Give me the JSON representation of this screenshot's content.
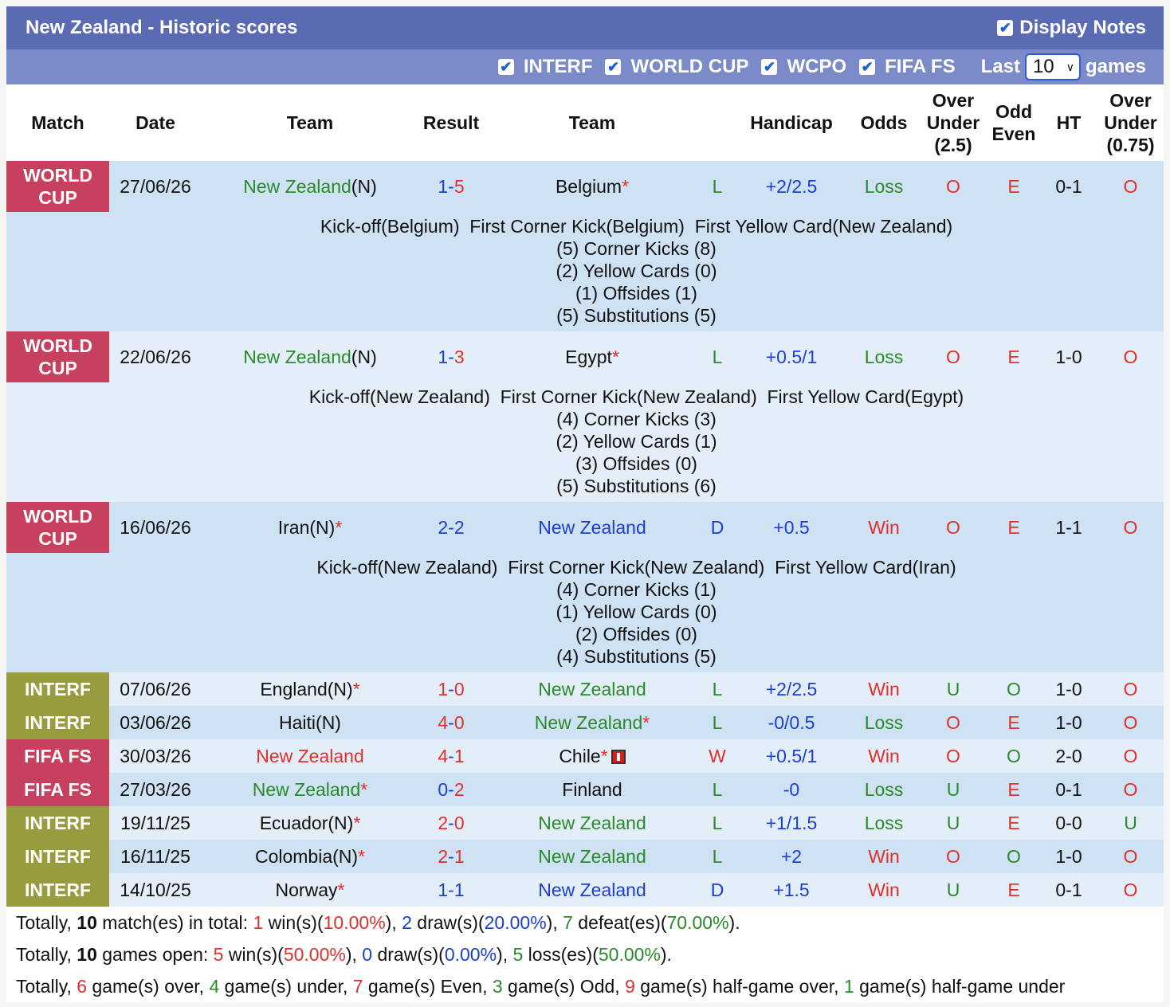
{
  "header": {
    "title": "New Zealand - Historic scores",
    "display_notes": "Display Notes",
    "display_notes_checked": true
  },
  "filters": {
    "items": [
      {
        "label": "INTERF",
        "checked": true
      },
      {
        "label": "WORLD CUP",
        "checked": true
      },
      {
        "label": "WCPO",
        "checked": true
      },
      {
        "label": "FIFA FS",
        "checked": true
      }
    ],
    "last_label": "Last",
    "last_value": "10",
    "games_label": "games"
  },
  "columns": {
    "match": "Match",
    "date": "Date",
    "team1": "Team",
    "result": "Result",
    "team2": "Team",
    "wl": "",
    "handicap": "Handicap",
    "odds": "Odds",
    "ou25_1": "Over",
    "ou25_2": "Under",
    "ou25_3": "(2.5)",
    "oe_1": "Odd",
    "oe_2": "Even",
    "ht": "HT",
    "ou075_1": "Over",
    "ou075_2": "Under",
    "ou075_3": "(0.75)"
  },
  "matches": [
    {
      "label1": "WORLD",
      "label2": "CUP",
      "comp": "wc",
      "date": "27/06/26",
      "home": "New Zealand",
      "home_suffix": "(N)",
      "home_star": "",
      "home_color": "green",
      "hs": "1",
      "as": "5",
      "hs_color": "blue",
      "as_color": "red",
      "away": "Belgium",
      "away_suffix": "",
      "away_star": "*",
      "away_color": "black",
      "wl": "L",
      "wl_color": "green",
      "handicap": "+2/2.5",
      "odds": "Loss",
      "odds_color": "green",
      "ou": "O",
      "ou_color": "red",
      "oe": "E",
      "oe_color": "red",
      "ht": "0-1",
      "ou2": "O",
      "ou2_color": "red",
      "notes": [
        "Kick-off(Belgium)  First Corner Kick(Belgium)  First Yellow Card(New Zealand)",
        "(5) Corner Kicks (8)",
        "(2) Yellow Cards (0)",
        "(1) Offsides (1)",
        "(5) Substitutions (5)"
      ]
    },
    {
      "label1": "WORLD",
      "label2": "CUP",
      "comp": "wc",
      "date": "22/06/26",
      "home": "New Zealand",
      "home_suffix": "(N)",
      "home_star": "",
      "home_color": "green",
      "hs": "1",
      "as": "3",
      "hs_color": "blue",
      "as_color": "red",
      "away": "Egypt",
      "away_suffix": "",
      "away_star": "*",
      "away_color": "black",
      "wl": "L",
      "wl_color": "green",
      "handicap": "+0.5/1",
      "odds": "Loss",
      "odds_color": "green",
      "ou": "O",
      "ou_color": "red",
      "oe": "E",
      "oe_color": "red",
      "ht": "1-0",
      "ou2": "O",
      "ou2_color": "red",
      "notes": [
        "Kick-off(New Zealand)  First Corner Kick(New Zealand)  First Yellow Card(Egypt)",
        "(4) Corner Kicks (3)",
        "(2) Yellow Cards (1)",
        "(3) Offsides (0)",
        "(5) Substitutions (6)"
      ]
    },
    {
      "label1": "WORLD",
      "label2": "CUP",
      "comp": "wc",
      "date": "16/06/26",
      "home": "Iran",
      "home_suffix": "(N)",
      "home_star": "*",
      "home_color": "black",
      "hs": "2",
      "as": "2",
      "hs_color": "blue",
      "as_color": "blue",
      "away": "New Zealand",
      "away_suffix": "",
      "away_star": "",
      "away_color": "blue",
      "wl": "D",
      "wl_color": "blue",
      "handicap": "+0.5",
      "odds": "Win",
      "odds_color": "red",
      "ou": "O",
      "ou_color": "red",
      "oe": "E",
      "oe_color": "red",
      "ht": "1-1",
      "ou2": "O",
      "ou2_color": "red",
      "notes": [
        "Kick-off(New Zealand)  First Corner Kick(New Zealand)  First Yellow Card(Iran)",
        "(4) Corner Kicks (1)",
        "(1) Yellow Cards (0)",
        "(2) Offsides (0)",
        "(4) Substitutions (5)"
      ]
    },
    {
      "label1": "INTERF",
      "label2": "",
      "comp": "intf",
      "date": "07/06/26",
      "home": "England",
      "home_suffix": "(N)",
      "home_star": "*",
      "home_color": "black",
      "hs": "1",
      "as": "0",
      "hs_color": "red",
      "as_color": "red",
      "away": "New Zealand",
      "away_suffix": "",
      "away_star": "",
      "away_color": "green",
      "wl": "L",
      "wl_color": "green",
      "handicap": "+2/2.5",
      "odds": "Win",
      "odds_color": "red",
      "ou": "U",
      "ou_color": "green",
      "oe": "O",
      "oe_color": "green",
      "ht": "1-0",
      "ou2": "O",
      "ou2_color": "red",
      "notes": []
    },
    {
      "label1": "INTERF",
      "label2": "",
      "comp": "intf",
      "date": "03/06/26",
      "home": "Haiti",
      "home_suffix": "(N)",
      "home_star": "",
      "home_color": "black",
      "hs": "4",
      "as": "0",
      "hs_color": "red",
      "as_color": "red",
      "away": "New Zealand",
      "away_suffix": "",
      "away_star": "*",
      "away_color": "green",
      "wl": "L",
      "wl_color": "green",
      "handicap": "-0/0.5",
      "odds": "Loss",
      "odds_color": "green",
      "ou": "O",
      "ou_color": "red",
      "oe": "E",
      "oe_color": "red",
      "ht": "1-0",
      "ou2": "O",
      "ou2_color": "red",
      "notes": []
    },
    {
      "label1": "FIFA FS",
      "label2": "",
      "comp": "ffs",
      "date": "30/03/26",
      "home": "New Zealand",
      "home_suffix": "",
      "home_star": "",
      "home_color": "red",
      "hs": "4",
      "as": "1",
      "hs_color": "red",
      "as_color": "red",
      "away": "Chile",
      "away_suffix": "",
      "away_star": "*",
      "away_color": "black",
      "away_redcard": true,
      "wl": "W",
      "wl_color": "red",
      "handicap": "+0.5/1",
      "odds": "Win",
      "odds_color": "red",
      "ou": "O",
      "ou_color": "red",
      "oe": "O",
      "oe_color": "green",
      "ht": "2-0",
      "ou2": "O",
      "ou2_color": "red",
      "notes": []
    },
    {
      "label1": "FIFA FS",
      "label2": "",
      "comp": "ffs",
      "date": "27/03/26",
      "home": "New Zealand",
      "home_suffix": "",
      "home_star": "*",
      "home_color": "green",
      "hs": "0",
      "as": "2",
      "hs_color": "blue",
      "as_color": "red",
      "away": "Finland",
      "away_suffix": "",
      "away_star": "",
      "away_color": "black",
      "wl": "L",
      "wl_color": "green",
      "handicap": "-0",
      "odds": "Loss",
      "odds_color": "green",
      "ou": "U",
      "ou_color": "green",
      "oe": "E",
      "oe_color": "red",
      "ht": "0-1",
      "ou2": "O",
      "ou2_color": "red",
      "notes": []
    },
    {
      "label1": "INTERF",
      "label2": "",
      "comp": "intf",
      "date": "19/11/25",
      "home": "Ecuador",
      "home_suffix": "(N)",
      "home_star": "*",
      "home_color": "black",
      "hs": "2",
      "as": "0",
      "hs_color": "red",
      "as_color": "red",
      "away": "New Zealand",
      "away_suffix": "",
      "away_star": "",
      "away_color": "green",
      "wl": "L",
      "wl_color": "green",
      "handicap": "+1/1.5",
      "odds": "Loss",
      "odds_color": "green",
      "ou": "U",
      "ou_color": "green",
      "oe": "E",
      "oe_color": "red",
      "ht": "0-0",
      "ou2": "U",
      "ou2_color": "green",
      "notes": []
    },
    {
      "label1": "INTERF",
      "label2": "",
      "comp": "intf",
      "date": "16/11/25",
      "home": "Colombia",
      "home_suffix": "(N)",
      "home_star": "*",
      "home_color": "black",
      "hs": "2",
      "as": "1",
      "hs_color": "red",
      "as_color": "red",
      "away": "New Zealand",
      "away_suffix": "",
      "away_star": "",
      "away_color": "green",
      "wl": "L",
      "wl_color": "green",
      "handicap": "+2",
      "odds": "Win",
      "odds_color": "red",
      "ou": "O",
      "ou_color": "red",
      "oe": "O",
      "oe_color": "green",
      "ht": "1-0",
      "ou2": "O",
      "ou2_color": "red",
      "notes": []
    },
    {
      "label1": "INTERF",
      "label2": "",
      "comp": "intf",
      "date": "14/10/25",
      "home": "Norway",
      "home_suffix": "",
      "home_star": "*",
      "home_color": "black",
      "hs": "1",
      "as": "1",
      "hs_color": "blue",
      "as_color": "blue",
      "away": "New Zealand",
      "away_suffix": "",
      "away_star": "",
      "away_color": "blue",
      "wl": "D",
      "wl_color": "blue",
      "handicap": "+1.5",
      "odds": "Win",
      "odds_color": "red",
      "ou": "U",
      "ou_color": "green",
      "oe": "E",
      "oe_color": "red",
      "ht": "0-1",
      "ou2": "O",
      "ou2_color": "red",
      "notes": []
    }
  ],
  "summary": {
    "line1": [
      {
        "t": "Totally, ",
        "c": ""
      },
      {
        "t": "10",
        "c": "b"
      },
      {
        "t": " match(es) in total: ",
        "c": ""
      },
      {
        "t": "1",
        "c": "red"
      },
      {
        "t": " win(s)(",
        "c": ""
      },
      {
        "t": "10.00%",
        "c": "red"
      },
      {
        "t": "), ",
        "c": ""
      },
      {
        "t": "2",
        "c": "blue"
      },
      {
        "t": " draw(s)(",
        "c": ""
      },
      {
        "t": "20.00%",
        "c": "blue"
      },
      {
        "t": "), ",
        "c": ""
      },
      {
        "t": "7",
        "c": "green"
      },
      {
        "t": " defeat(es)(",
        "c": ""
      },
      {
        "t": "70.00%",
        "c": "green"
      },
      {
        "t": ").",
        "c": ""
      }
    ],
    "line2": [
      {
        "t": "Totally, ",
        "c": ""
      },
      {
        "t": "10",
        "c": "b"
      },
      {
        "t": " games open: ",
        "c": ""
      },
      {
        "t": "5",
        "c": "red"
      },
      {
        "t": " win(s)(",
        "c": ""
      },
      {
        "t": "50.00%",
        "c": "red"
      },
      {
        "t": "), ",
        "c": ""
      },
      {
        "t": "0",
        "c": "blue"
      },
      {
        "t": " draw(s)(",
        "c": ""
      },
      {
        "t": "0.00%",
        "c": "blue"
      },
      {
        "t": "), ",
        "c": ""
      },
      {
        "t": "5",
        "c": "green"
      },
      {
        "t": " loss(es)(",
        "c": ""
      },
      {
        "t": "50.00%",
        "c": "green"
      },
      {
        "t": ").",
        "c": ""
      }
    ],
    "line3": [
      {
        "t": "Totally, ",
        "c": ""
      },
      {
        "t": "6",
        "c": "red"
      },
      {
        "t": " game(s) over, ",
        "c": ""
      },
      {
        "t": "4",
        "c": "green"
      },
      {
        "t": " game(s) under, ",
        "c": ""
      },
      {
        "t": "7",
        "c": "red"
      },
      {
        "t": " game(s) Even, ",
        "c": ""
      },
      {
        "t": "3",
        "c": "green"
      },
      {
        "t": " game(s) Odd, ",
        "c": ""
      },
      {
        "t": "9",
        "c": "red"
      },
      {
        "t": " game(s) half-game over, ",
        "c": ""
      },
      {
        "t": "1",
        "c": "green"
      },
      {
        "t": " game(s) half-game under",
        "c": ""
      }
    ]
  },
  "colors": {
    "title_bg": "#5b6bb3",
    "filter_bg": "#7b8bca",
    "worldcup": "#c7405e",
    "interf": "#999c3e",
    "fifafs": "#c7405e",
    "row_a": "#cfe2f3",
    "row_b": "#e4eef8",
    "green": "#2a8a2a",
    "red": "#e0302b",
    "blue": "#1a3ed8"
  }
}
